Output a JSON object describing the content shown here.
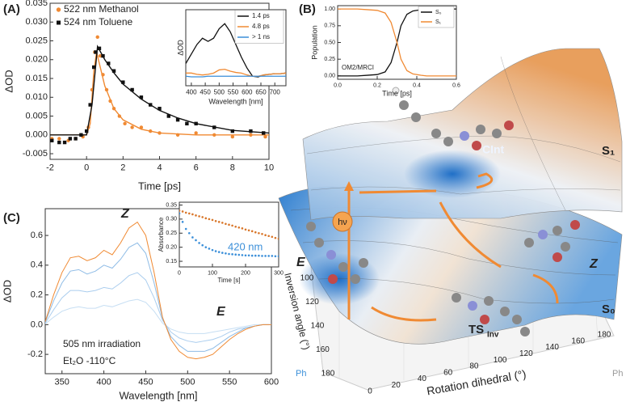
{
  "chart_data": [
    {
      "type": "scatter",
      "xlabel": "Time [ps]",
      "ylabel": "ΔOD",
      "xlim": [
        -2,
        10
      ],
      "ylim": [
        -0.0065,
        0.035
      ],
      "xticks": [
        -2,
        0,
        2,
        4,
        6,
        8,
        10
      ],
      "yticks": [
        -0.005,
        {
          "value": 0,
          "label": "0.000"
        },
        0.005,
        {
          "value": 0.01,
          "label": "0.010"
        },
        0.015,
        {
          "value": 0.02,
          "label": "0.020"
        },
        0.025,
        {
          "value": 0.03,
          "label": "0.030"
        },
        0.035
      ],
      "legend": "upper left",
      "series": [
        {
          "name": "522 nm Methanol",
          "color": "#f08a33",
          "marker": "circle",
          "x": [
            -1.9,
            -1.5,
            -1.0,
            -0.6,
            -0.2,
            0.1,
            0.3,
            0.45,
            0.6,
            0.75,
            0.9,
            1.1,
            1.3,
            1.5,
            1.8,
            2.1,
            2.5,
            3.0,
            3.5,
            4.0,
            5.0,
            6.0,
            7.0,
            8.0,
            9.0,
            9.8
          ],
          "values": [
            -0.001,
            -0.001,
            -0.0015,
            -0.001,
            -0.0005,
            0.002,
            0.012,
            0.022,
            0.026,
            0.021,
            0.016,
            0.012,
            0.009,
            0.007,
            0.005,
            0.003,
            0.002,
            0.002,
            0.001,
            0.0005,
            0,
            0.0005,
            0,
            -0.0005,
            0,
            -0.0005
          ],
          "fit": {
            "x": [
              -2,
              0,
              0.2,
              0.4,
              0.55,
              0.7,
              1.0,
              1.5,
              2,
              3,
              4,
              6,
              10
            ],
            "values": [
              0,
              0,
              0.003,
              0.017,
              0.022,
              0.019,
              0.013,
              0.007,
              0.004,
              0.0015,
              0.0005,
              0,
              0
            ]
          }
        },
        {
          "name": "524 nm Toluene",
          "color": "#111111",
          "marker": "square",
          "x": [
            -1.9,
            -1.5,
            -1.2,
            -0.9,
            -0.6,
            -0.3,
            0,
            0.2,
            0.4,
            0.5,
            0.7,
            0.9,
            1.2,
            1.5,
            2.0,
            2.5,
            3.0,
            3.5,
            4.0,
            4.5,
            5.0,
            5.5,
            6.0,
            7.0,
            8.0,
            9.0,
            9.7
          ],
          "values": [
            -0.0015,
            -0.002,
            -0.002,
            -0.001,
            -0.001,
            0,
            0.001,
            0.008,
            0.018,
            0.022,
            0.023,
            0.021,
            0.019,
            0.017,
            0.014,
            0.012,
            0.01,
            0.008,
            0.007,
            0.005,
            0.004,
            0.003,
            0.003,
            0.002,
            0.001,
            0.001,
            0.0005
          ],
          "fit": {
            "x": [
              -2,
              0,
              0.3,
              0.6,
              1,
              1.5,
              2,
              3,
              4,
              5,
              6,
              8,
              10
            ],
            "values": [
              0,
              0,
              0.008,
              0.0235,
              0.02,
              0.0165,
              0.0135,
              0.0095,
              0.0065,
              0.0045,
              0.003,
              0.0012,
              0.0005
            ]
          }
        }
      ]
    },
    {
      "type": "line",
      "xlabel": "Wavelength [nm]",
      "ylabel": "ΔOD",
      "xlim": [
        380,
        740
      ],
      "ylim": [
        -0.2,
        1
      ],
      "xticks": [
        400,
        450,
        500,
        550,
        600,
        650,
        700
      ],
      "legend": "upper right",
      "x": [
        380,
        400,
        420,
        440,
        460,
        480,
        500,
        520,
        540,
        560,
        580,
        600,
        620,
        640,
        660,
        680,
        700,
        720,
        740
      ],
      "series": [
        {
          "name": "1.4 ps",
          "color": "#111111",
          "values": [
            0.15,
            0.3,
            0.45,
            0.55,
            0.5,
            0.55,
            0.7,
            0.78,
            0.65,
            0.45,
            0.25,
            0.08,
            -0.05,
            -0.06,
            -0.03,
            -0.02,
            -0.01,
            -0.01,
            0
          ]
        },
        {
          "name": "4.8 ps",
          "color": "#f08a33",
          "values": [
            0,
            0,
            -0.02,
            -0.03,
            -0.02,
            0,
            0.05,
            0.06,
            0.03,
            0.01,
            0,
            -0.03,
            -0.05,
            -0.05,
            -0.03,
            -0.02,
            -0.01,
            -0.01,
            0
          ]
        },
        {
          "name": "> 1 ns",
          "color": "#3b8fd9",
          "values": [
            -0.05,
            -0.06,
            -0.06,
            -0.06,
            -0.05,
            -0.05,
            -0.05,
            -0.05,
            -0.05,
            -0.05,
            -0.05,
            -0.05,
            -0.05,
            -0.05,
            -0.05,
            -0.05,
            -0.05,
            -0.05,
            -0.05
          ]
        }
      ]
    },
    {
      "type": "line",
      "xlabel": "Time [ps]",
      "ylabel": "Population",
      "xlim": [
        0,
        0.6
      ],
      "ylim": [
        -0.05,
        1.05
      ],
      "xticks": [
        {
          "value": 0,
          "label": "0.0"
        },
        0.2,
        0.4,
        0.6
      ],
      "yticks": [
        {
          "value": 0,
          "label": "0.00"
        },
        0.25,
        {
          "value": 0.5,
          "label": "0.50"
        },
        0.75,
        {
          "value": 1,
          "label": "1.00"
        }
      ],
      "legend": "upper right",
      "annotations": [
        "OM2/MRCI"
      ],
      "x": [
        0,
        0.05,
        0.1,
        0.15,
        0.2,
        0.24,
        0.27,
        0.3,
        0.32,
        0.35,
        0.38,
        0.42,
        0.45,
        0.5,
        0.55,
        0.6
      ],
      "series": [
        {
          "name": "S₀",
          "color": "#111111",
          "values": [
            0,
            0,
            0,
            0.01,
            0.02,
            0.06,
            0.2,
            0.5,
            0.75,
            0.92,
            0.97,
            0.99,
            1,
            1,
            1,
            1
          ]
        },
        {
          "name": "S₁",
          "color": "#f08a33",
          "values": [
            1,
            1,
            1,
            0.99,
            0.98,
            0.94,
            0.8,
            0.5,
            0.25,
            0.08,
            0.03,
            0.01,
            0,
            0,
            0,
            0
          ]
        }
      ]
    },
    {
      "type": "line",
      "xlabel": "Wavelength [nm]",
      "ylabel": "ΔOD",
      "xlim": [
        330,
        600
      ],
      "ylim": [
        -0.33,
        0.78
      ],
      "xticks": [
        350,
        400,
        450,
        500,
        550,
        600
      ],
      "yticks": [
        -0.2,
        {
          "value": 0,
          "label": "0.0"
        },
        0.2,
        0.4,
        0.6
      ],
      "annotations": [
        "Z",
        "E",
        "505 nm irradiation",
        "Et₂O -110°C"
      ],
      "x": [
        330,
        340,
        350,
        360,
        370,
        380,
        390,
        400,
        410,
        420,
        430,
        440,
        450,
        460,
        470,
        480,
        490,
        500,
        510,
        520,
        530,
        540,
        550,
        560,
        570,
        580,
        590,
        600
      ],
      "series": [
        {
          "color": "#c6def3",
          "values": [
            0.005,
            0.05,
            0.09,
            0.11,
            0.12,
            0.11,
            0.11,
            0.13,
            0.12,
            0.14,
            0.16,
            0.17,
            0.15,
            0.09,
            0.01,
            -0.03,
            -0.05,
            -0.06,
            -0.06,
            -0.06,
            -0.05,
            -0.04,
            -0.03,
            -0.02,
            -0.01,
            0,
            0,
            0
          ]
        },
        {
          "color": "#aacdee",
          "values": [
            0.01,
            0.1,
            0.18,
            0.23,
            0.23,
            0.22,
            0.23,
            0.25,
            0.24,
            0.28,
            0.33,
            0.35,
            0.3,
            0.18,
            0.03,
            -0.05,
            -0.09,
            -0.11,
            -0.12,
            -0.11,
            -0.1,
            -0.08,
            -0.05,
            -0.03,
            -0.02,
            -0.01,
            0,
            0
          ]
        },
        {
          "color": "#8fbce6",
          "values": [
            0.016,
            0.16,
            0.28,
            0.36,
            0.37,
            0.34,
            0.36,
            0.4,
            0.38,
            0.44,
            0.52,
            0.55,
            0.48,
            0.28,
            0.04,
            -0.08,
            -0.14,
            -0.18,
            -0.18,
            -0.18,
            -0.16,
            -0.12,
            -0.08,
            -0.05,
            -0.02,
            -0.01,
            0,
            0
          ]
        },
        {
          "color": "#f08a33",
          "values": [
            0.02,
            0.2,
            0.35,
            0.45,
            0.46,
            0.43,
            0.45,
            0.5,
            0.47,
            0.55,
            0.65,
            0.69,
            0.6,
            0.35,
            0.05,
            -0.1,
            -0.18,
            -0.22,
            -0.23,
            -0.22,
            -0.2,
            -0.15,
            -0.1,
            -0.06,
            -0.03,
            -0.01,
            0,
            0
          ]
        }
      ]
    },
    {
      "type": "scatter",
      "xlabel": "Time [s]",
      "ylabel": "Absorbance",
      "xlim": [
        0,
        300
      ],
      "ylim": [
        0.13,
        0.36
      ],
      "xticks": [
        0,
        100,
        200,
        300
      ],
      "yticks": [
        0.15,
        {
          "value": 0.2,
          "label": "0.20"
        },
        0.25,
        {
          "value": 0.3,
          "label": "0.30"
        },
        0.35
      ],
      "annotations": [
        "420 nm"
      ],
      "x": [
        0,
        10,
        20,
        30,
        40,
        50,
        60,
        70,
        80,
        90,
        100,
        110,
        120,
        130,
        140,
        150,
        160,
        170,
        180,
        190,
        200,
        210,
        220,
        230,
        240,
        250,
        260,
        270,
        280,
        290,
        300
      ],
      "series": [
        {
          "color": "#3b8fd9",
          "marker": "circle",
          "values": [
            0.32,
            0.29,
            0.265,
            0.25,
            0.235,
            0.225,
            0.215,
            0.207,
            0.2,
            0.195,
            0.19,
            0.186,
            0.183,
            0.18,
            0.178,
            0.176,
            0.175,
            0.174,
            0.173,
            0.172,
            0.171,
            0.171,
            0.17,
            0.17,
            0.17,
            0.169,
            0.169,
            0.169,
            0.169,
            0.168,
            0.168
          ]
        },
        {
          "color": "#d9772b",
          "marker": "circle",
          "values": [
            0.33,
            0.327,
            0.323,
            0.32,
            0.317,
            0.313,
            0.31,
            0.307,
            0.303,
            0.3,
            0.297,
            0.293,
            0.29,
            0.287,
            0.283,
            0.28,
            0.277,
            0.273,
            0.27,
            0.267,
            0.263,
            0.26,
            0.257,
            0.253,
            0.25,
            0.247,
            0.243,
            0.24,
            0.237,
            0.233,
            0.23
          ]
        }
      ]
    }
  ],
  "figure": {
    "panels": [
      "(A)",
      "(B)",
      "(C)"
    ],
    "surface": {
      "s1": "S₁",
      "s0": "S₀",
      "cint": "CInt",
      "e": "E",
      "z": "Z",
      "ts": "TS",
      "ts_sub": "Inv",
      "hv": "hν",
      "inversion_label": "Inversion angle (°)",
      "rotation_label": "Rotation dihedral (°)",
      "inversion_ticks": [
        100,
        120,
        140,
        160,
        180
      ],
      "rotation_ticks": [
        0,
        20,
        40,
        60,
        80,
        100,
        120,
        140,
        160,
        180
      ],
      "ph": [
        "Ph",
        "Ph"
      ]
    }
  }
}
